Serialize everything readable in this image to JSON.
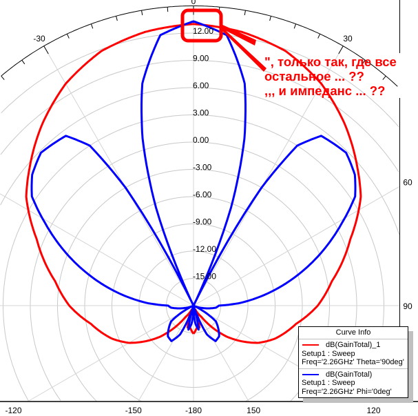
{
  "chart_data": {
    "type": "line",
    "coordinate_system": "polar",
    "angle_unit": "deg",
    "angle_zero": "top",
    "angle_direction": "clockwise",
    "radial_range": [
      -18,
      15
    ],
    "radial_tick_labels": [
      "12.00",
      "9.00",
      "6.00",
      "3.00",
      "0.00",
      "-3.00",
      "-6.00",
      "-9.00",
      "-12.00",
      "-15.00"
    ],
    "radial_ticks": [
      12,
      9,
      6,
      3,
      0,
      -3,
      -6,
      -9,
      -12,
      -15
    ],
    "angular_tick_labels": [
      "0",
      "30",
      "60",
      "90",
      "120",
      "150",
      "-180",
      "-150",
      "-120",
      "-30"
    ],
    "angular_ticks": [
      0,
      30,
      60,
      90,
      120,
      150,
      180,
      -150,
      -120,
      -30
    ],
    "grid": true,
    "series": [
      {
        "name": "dB(GainTotal)_1",
        "color": "#ff0000",
        "theta": [
          -180,
          -172,
          -165,
          -155,
          -145,
          -133,
          -120,
          -112,
          -100,
          -90,
          -80,
          -67,
          -57,
          -50,
          -40,
          -30,
          -20,
          -10,
          0,
          10,
          20,
          30,
          40,
          50,
          57,
          67,
          80,
          90,
          100,
          112,
          120,
          133,
          145,
          155,
          165,
          172,
          180
        ],
        "values": [
          -14.9,
          -15.5,
          -15.5,
          -17.5,
          -16.5,
          -13,
          -9.8,
          -8.3,
          -6.5,
          -4.3,
          -2.5,
          0.8,
          4.0,
          5.6,
          8.0,
          10.2,
          11.8,
          12.6,
          13.0,
          12.6,
          11.8,
          10.2,
          8.0,
          5.6,
          4.0,
          0.8,
          -2.5,
          -4.3,
          -6.5,
          -8.3,
          -9.8,
          -13,
          -16.5,
          -17.5,
          -15.5,
          -15.5,
          -14.9
        ]
      },
      {
        "name": "dB(GainTotal)",
        "color": "#0000ff",
        "theta": [
          -180,
          -174,
          -168,
          -162,
          -155,
          -148,
          -140,
          -125,
          -115,
          -105,
          -95,
          -90,
          -87,
          -82,
          -74,
          -68,
          -61,
          -56,
          -51,
          -45,
          -37,
          -33,
          -30,
          -28,
          -26,
          -24,
          -21,
          -17,
          -13,
          -7,
          0,
          7,
          13,
          17,
          21,
          24,
          26,
          28,
          30,
          33,
          37,
          45,
          51,
          56,
          61,
          68,
          74,
          82,
          87,
          90,
          95,
          105,
          115,
          125,
          140,
          148,
          155,
          162,
          168,
          174,
          180
        ],
        "values": [
          -18,
          -16,
          -15.3,
          -18,
          -14.5,
          -13.4,
          -13.6,
          -15,
          -18,
          -17,
          -15.5,
          -15.2,
          -13,
          -10.4,
          -6.2,
          -3,
          0.7,
          3.5,
          4.9,
          5.8,
          5.4,
          3,
          -3,
          -10,
          -18,
          -14.5,
          -6.5,
          1.2,
          7.1,
          12.0,
          13.3,
          12.0,
          7.1,
          1.2,
          -6.5,
          -14.5,
          -18,
          -10,
          -3,
          3,
          5.4,
          5.8,
          4.9,
          3.5,
          0.7,
          -3,
          -6.2,
          -10.4,
          -13,
          -15.2,
          -15.5,
          -17,
          -18,
          -15,
          -13.6,
          -13.4,
          -14.5,
          -18,
          -15.3,
          -16,
          -18
        ]
      }
    ]
  },
  "legend": {
    "title": "Curve Info",
    "entries": [
      {
        "name": "dB(GainTotal)_1",
        "line2": "Setup1 : Sweep",
        "line3": "Freq='2.26GHz' Theta='90deg'",
        "color": "#ff0000"
      },
      {
        "name": "dB(GainTotal)",
        "line2": "Setup1 : Sweep",
        "line3": "Freq='2.26GHz' Phi='0deg'",
        "color": "#0000ff"
      }
    ]
  },
  "annotation": {
    "color": "#ff0000",
    "lines": [
      "\", только так, где все",
      "остальное ... ??",
      ",,, и импеданс ... ??"
    ]
  }
}
